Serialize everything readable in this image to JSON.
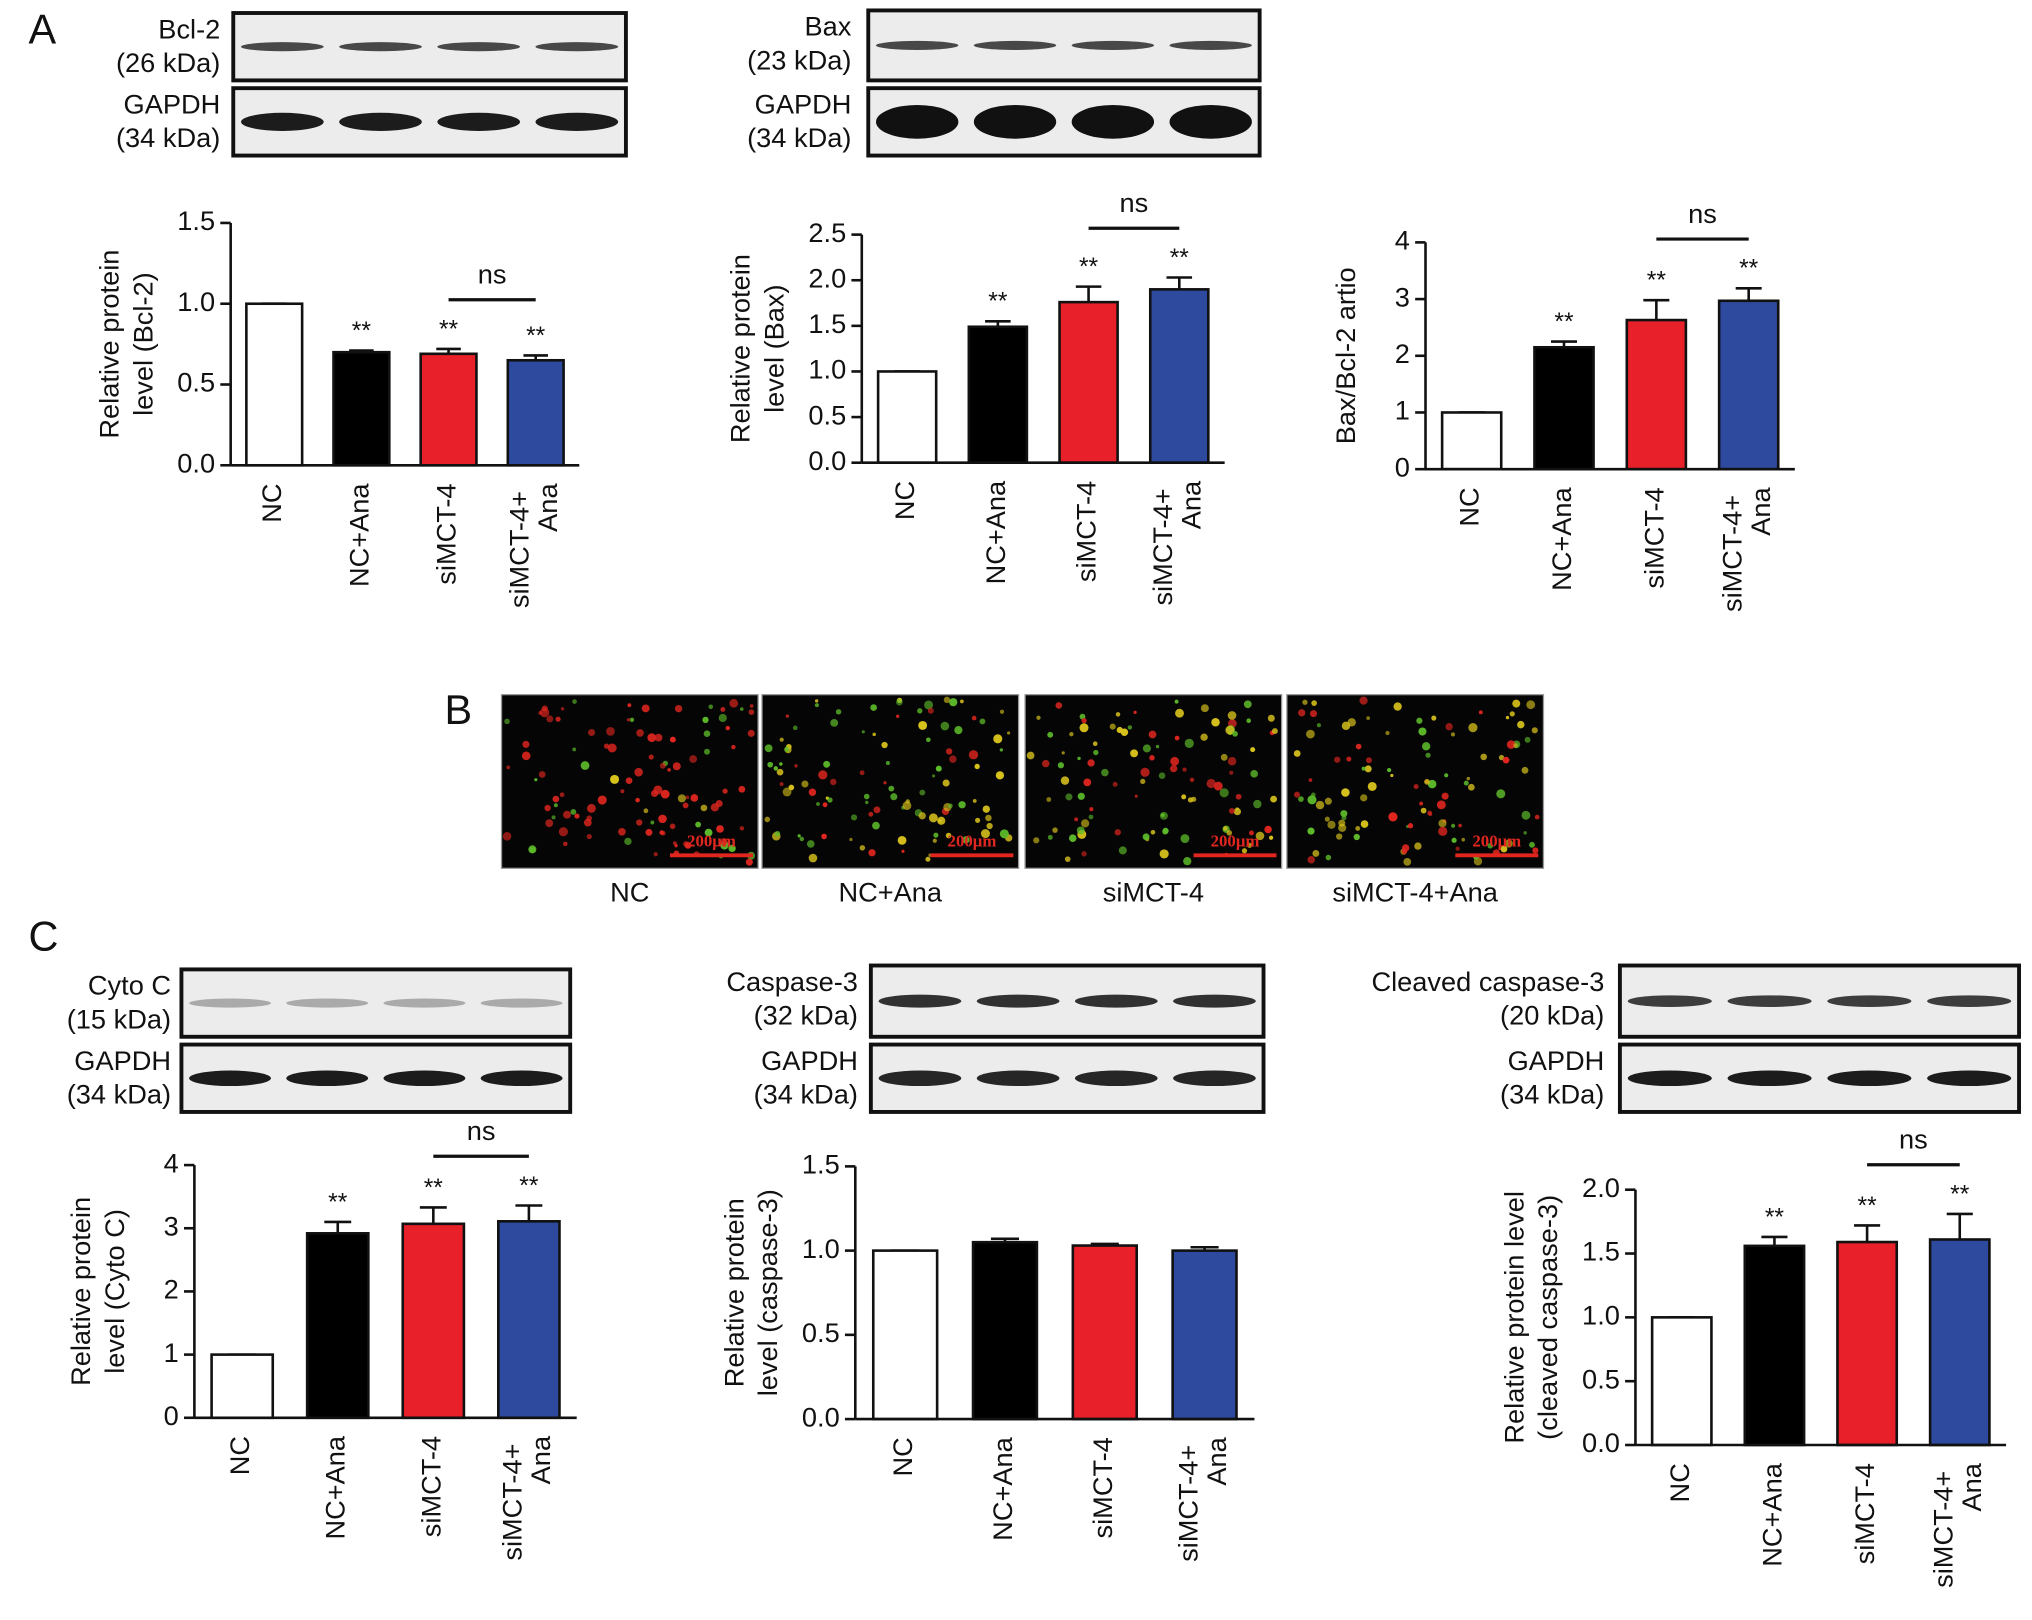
{
  "panel_labels": [
    "A",
    "B",
    "C"
  ],
  "blots": [
    {
      "protein": "Bcl-2",
      "size": "(26 kDa)"
    },
    {
      "protein": "GAPDH",
      "size": "(34 kDa)"
    },
    {
      "protein": "Bax",
      "size": "(23 kDa)"
    },
    {
      "protein": "GAPDH",
      "size": "(34 kDa)"
    },
    {
      "protein": "Cyto C",
      "size": "(15 kDa)"
    },
    {
      "protein": "GAPDH",
      "size": "(34 kDa)"
    },
    {
      "protein": "Caspase-3",
      "size": "(32 kDa)"
    },
    {
      "protein": "GAPDH",
      "size": "(34 kDa)"
    },
    {
      "protein": "Cleaved caspase-3",
      "size": "(20 kDa)"
    },
    {
      "protein": "GAPDH",
      "size": "(34 kDa)"
    }
  ],
  "micrographs": {
    "labels": [
      "NC",
      "NC+Ana",
      "siMCT-4",
      "siMCT-4+Ana"
    ],
    "scale_bar": "200μm"
  },
  "chart_data": [
    {
      "type": "bar",
      "ylabel": [
        "Relative protein",
        "level (Bcl-2)"
      ],
      "categories": [
        "NC",
        "NC+Ana",
        "siMCT-4",
        "siMCT-4+ Ana"
      ],
      "values": [
        1,
        0.7,
        0.69,
        0.65
      ],
      "errors": [
        0,
        0.01,
        0.03,
        0.03
      ],
      "colors": [
        "#ffffff",
        "#000000",
        "#e8202a",
        "#2e4a9e"
      ],
      "significance": [
        null,
        "**",
        "**",
        "**"
      ],
      "annotations": [
        {
          "text": "ns",
          "span": [
            "siMCT-4",
            "siMCT-4+ Ana"
          ]
        }
      ],
      "ylim": [
        0,
        1.5
      ],
      "yticks": [
        {
          "value": 0,
          "label": "0.0"
        },
        0.5,
        {
          "value": 1,
          "label": "1.0"
        },
        1.5
      ]
    },
    {
      "type": "bar",
      "ylabel": [
        "Relative protein",
        "level (Bax)"
      ],
      "categories": [
        "NC",
        "NC+Ana",
        "siMCT-4",
        "siMCT-4+ Ana"
      ],
      "values": [
        1,
        1.49,
        1.76,
        1.9
      ],
      "errors": [
        0,
        0.06,
        0.17,
        0.13
      ],
      "colors": [
        "#ffffff",
        "#000000",
        "#e8202a",
        "#2e4a9e"
      ],
      "significance": [
        null,
        "**",
        "**",
        "**"
      ],
      "annotations": [
        {
          "text": "ns",
          "span": [
            "siMCT-4",
            "siMCT-4+ Ana"
          ]
        }
      ],
      "ylim": [
        0,
        2.5
      ],
      "yticks": [
        {
          "value": 0,
          "label": "0.0"
        },
        0.5,
        {
          "value": 1,
          "label": "1.0"
        },
        1.5,
        {
          "value": 2,
          "label": "2.0"
        },
        2.5
      ]
    },
    {
      "type": "bar",
      "ylabel": [
        "Bax/Bcl-2 artio"
      ],
      "categories": [
        "NC",
        "NC+Ana",
        "siMCT-4",
        "siMCT-4+ Ana"
      ],
      "values": [
        1,
        2.15,
        2.63,
        2.97
      ],
      "errors": [
        0,
        0.1,
        0.35,
        0.22
      ],
      "colors": [
        "#ffffff",
        "#000000",
        "#e8202a",
        "#2e4a9e"
      ],
      "significance": [
        null,
        "**",
        "**",
        "**"
      ],
      "annotations": [
        {
          "text": "ns",
          "span": [
            "siMCT-4",
            "siMCT-4+ Ana"
          ]
        }
      ],
      "ylim": [
        0,
        4
      ],
      "yticks": [
        0,
        1,
        2,
        3,
        4
      ]
    },
    {
      "type": "bar",
      "ylabel": [
        "Relative protein",
        "level (Cyto C)"
      ],
      "categories": [
        "NC",
        "NC+Ana",
        "siMCT-4",
        "siMCT-4+ Ana"
      ],
      "values": [
        1,
        2.92,
        3.07,
        3.11
      ],
      "errors": [
        0,
        0.18,
        0.26,
        0.25
      ],
      "colors": [
        "#ffffff",
        "#000000",
        "#e8202a",
        "#2e4a9e"
      ],
      "significance": [
        null,
        "**",
        "**",
        "**"
      ],
      "annotations": [
        {
          "text": "ns",
          "span": [
            "siMCT-4",
            "siMCT-4+ Ana"
          ]
        }
      ],
      "ylim": [
        0,
        4
      ],
      "yticks": [
        0,
        1,
        2,
        3,
        4
      ]
    },
    {
      "type": "bar",
      "ylabel": [
        "Relative protein",
        "level (caspase-3)"
      ],
      "categories": [
        "NC",
        "NC+Ana",
        "siMCT-4",
        "siMCT-4+ Ana"
      ],
      "values": [
        1,
        1.05,
        1.03,
        1.0
      ],
      "errors": [
        0,
        0.02,
        0.01,
        0.02
      ],
      "colors": [
        "#ffffff",
        "#000000",
        "#e8202a",
        "#2e4a9e"
      ],
      "ylim": [
        0,
        1.5
      ],
      "yticks": [
        {
          "value": 0,
          "label": "0.0"
        },
        0.5,
        {
          "value": 1,
          "label": "1.0"
        },
        1.5
      ]
    },
    {
      "type": "bar",
      "ylabel": [
        "Relative protein level",
        "(cleaved caspase-3)"
      ],
      "categories": [
        "NC",
        "NC+Ana",
        "siMCT-4",
        "siMCT-4+ Ana"
      ],
      "values": [
        1,
        1.56,
        1.59,
        1.61
      ],
      "errors": [
        0,
        0.07,
        0.13,
        0.2
      ],
      "colors": [
        "#ffffff",
        "#000000",
        "#e8202a",
        "#2e4a9e"
      ],
      "significance": [
        null,
        "**",
        "**",
        "**"
      ],
      "annotations": [
        {
          "text": "ns",
          "span": [
            "siMCT-4",
            "siMCT-4+ Ana"
          ]
        }
      ],
      "ylim": [
        0,
        2.0
      ],
      "yticks": [
        {
          "value": 0,
          "label": "0.0"
        },
        0.5,
        {
          "value": 1,
          "label": "1.0"
        },
        1.5,
        {
          "value": 2,
          "label": "2.0"
        }
      ]
    }
  ]
}
